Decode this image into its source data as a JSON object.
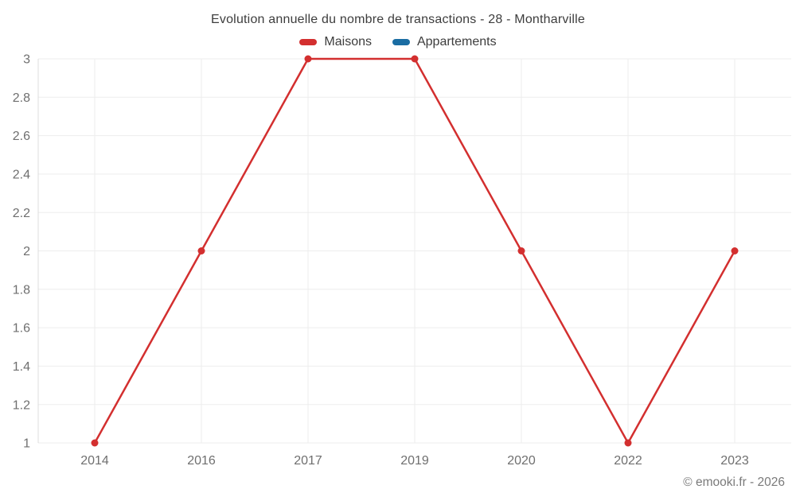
{
  "chart_data": {
    "type": "line",
    "title": "Evolution annuelle du nombre de transactions - 28 - Montharville",
    "categories": [
      "2014",
      "2016",
      "2017",
      "2019",
      "2020",
      "2022",
      "2023"
    ],
    "series": [
      {
        "name": "Maisons",
        "color": "#d32f2f",
        "values": [
          1,
          2,
          3,
          3,
          2,
          1,
          2
        ]
      },
      {
        "name": "Appartements",
        "color": "#1a6da3",
        "values": []
      }
    ],
    "xlabel": "",
    "ylabel": "",
    "ylim": [
      1,
      3
    ],
    "y_ticks": [
      1,
      1.2,
      1.4,
      1.6,
      1.8,
      2,
      2.2,
      2.4,
      2.6,
      2.8,
      3
    ],
    "grid": true,
    "legend_position": "top"
  },
  "footer": {
    "text": "© emooki.fr - 2026"
  },
  "colors": {
    "grid": "#ededed",
    "axis": "#dcdcdc",
    "tick_text": "#6f6f6f",
    "title_text": "#3d3d3d",
    "footer_text": "#7a7a7a"
  }
}
